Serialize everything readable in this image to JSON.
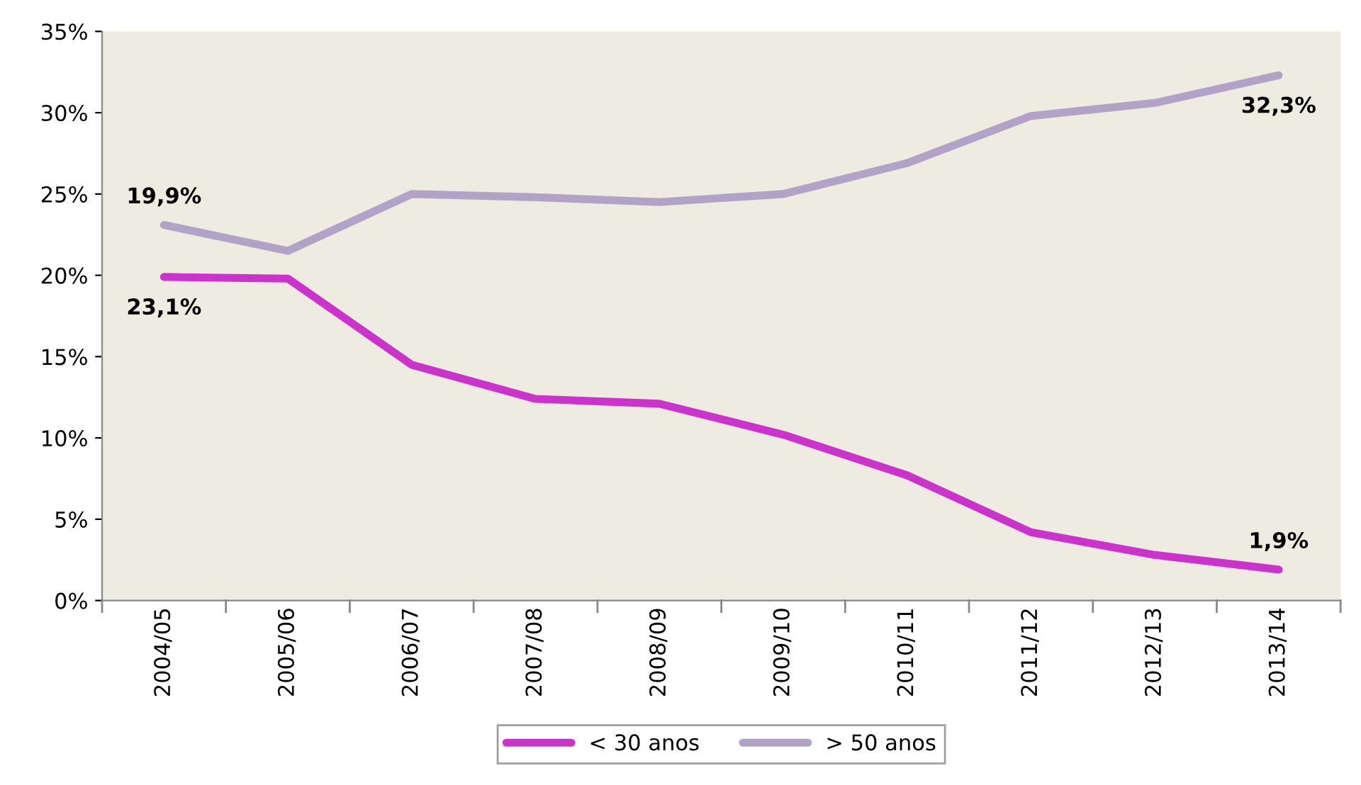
{
  "chart_data": {
    "type": "line",
    "categories": [
      "2004/05",
      "2005/06",
      "2006/07",
      "2007/08",
      "2008/09",
      "2009/10",
      "2010/11",
      "2011/12",
      "2012/13",
      "2013/14"
    ],
    "series": [
      {
        "name": "< 30 anos",
        "color": "#cc33cc",
        "values": [
          19.9,
          19.8,
          14.5,
          12.4,
          12.1,
          10.2,
          7.7,
          4.2,
          2.8,
          1.9
        ]
      },
      {
        "name": "> 50 anos",
        "color": "#b3a2c7",
        "values": [
          23.1,
          21.5,
          25.0,
          24.8,
          24.5,
          25.0,
          26.9,
          29.8,
          30.6,
          32.3
        ]
      }
    ],
    "ylim": [
      0,
      35
    ],
    "yticks": [
      {
        "value": 0,
        "label": "0%"
      },
      {
        "value": 5,
        "label": "5%"
      },
      {
        "value": 10,
        "label": "10%"
      },
      {
        "value": 15,
        "label": "15%"
      },
      {
        "value": 20,
        "label": "20%"
      },
      {
        "value": 25,
        "label": "25%"
      },
      {
        "value": 30,
        "label": "30%"
      },
      {
        "value": 35,
        "label": "35%"
      }
    ],
    "annotations": [
      {
        "text": "19,9%",
        "x": "2004/05",
        "y": 23.1
      },
      {
        "text": "23,1%",
        "x": "2004/05",
        "y": 19.9
      },
      {
        "text": "32,3%",
        "x": "2013/14",
        "y": 32.3
      },
      {
        "text": "1,9%",
        "x": "2013/14",
        "y": 1.9
      }
    ],
    "grid": false,
    "legend": "bottom",
    "marker": "none",
    "line_style": "solid"
  }
}
